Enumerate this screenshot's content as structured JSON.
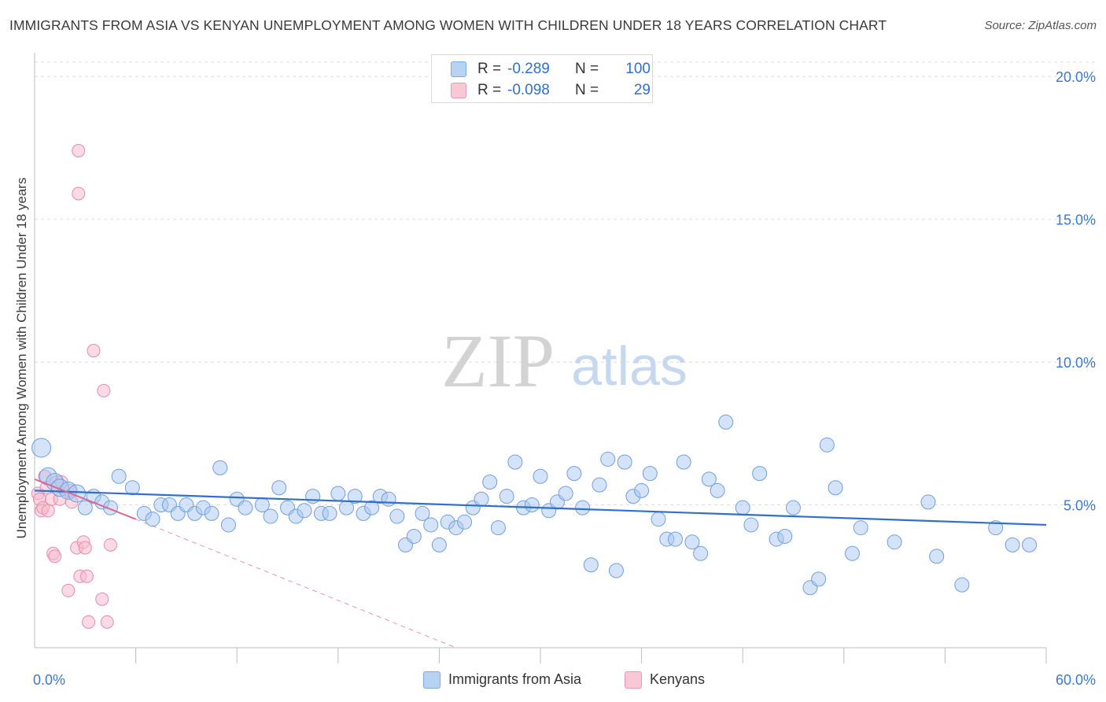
{
  "header": {
    "title": "IMMIGRANTS FROM ASIA VS KENYAN UNEMPLOYMENT AMONG WOMEN WITH CHILDREN UNDER 18 YEARS CORRELATION CHART",
    "source": "Source: ZipAtlas.com"
  },
  "watermark": {
    "zip": "ZIP",
    "atlas": "atlas"
  },
  "legend": {
    "rows": [
      {
        "r_label": "R =",
        "r_value": "-0.289",
        "n_label": "N =",
        "n_value": "100"
      },
      {
        "r_label": "R =",
        "r_value": "-0.098",
        "n_label": "N =",
        "n_value": "29"
      }
    ]
  },
  "bottom_legend": {
    "series1": "Immigrants from Asia",
    "series2": "Kenyans"
  },
  "colors": {
    "blue_fill": "#a9c8f0",
    "blue_stroke": "#6f9fdf",
    "blue_line": "#2f6fcf",
    "pink_fill": "#f6bccd",
    "pink_stroke": "#e88aa8",
    "pink_line": "#e0658e",
    "grid": "#dcdcdc",
    "axis_text": "#3b78d4"
  },
  "chart_data": {
    "type": "scatter",
    "title": "IMMIGRANTS FROM ASIA VS KENYAN UNEMPLOYMENT AMONG WOMEN WITH CHILDREN UNDER 18 YEARS CORRELATION CHART",
    "xlabel": "",
    "ylabel": "Unemployment Among Women with Children Under 18 years",
    "xlim": [
      0,
      60
    ],
    "ylim": [
      0,
      20.5
    ],
    "x_tick_labels": [
      "0.0%",
      "60.0%"
    ],
    "y_ticks": [
      5,
      10,
      15,
      20
    ],
    "y_tick_labels": [
      "5.0%",
      "10.0%",
      "15.0%",
      "20.0%"
    ],
    "grid": true,
    "series": [
      {
        "name": "Immigrants from Asia",
        "color": "#a9c8f0",
        "trend": {
          "x0": 0,
          "y0": 5.5,
          "x1": 60,
          "y1": 4.3
        },
        "points": [
          [
            0.4,
            7.0
          ],
          [
            0.8,
            6.0
          ],
          [
            1.2,
            5.8
          ],
          [
            1.5,
            5.6
          ],
          [
            2.0,
            5.5
          ],
          [
            2.5,
            5.4
          ],
          [
            3.0,
            4.9
          ],
          [
            3.5,
            5.3
          ],
          [
            4.0,
            5.1
          ],
          [
            4.5,
            4.9
          ],
          [
            5.0,
            6.0
          ],
          [
            5.8,
            5.6
          ],
          [
            6.5,
            4.7
          ],
          [
            7.0,
            4.5
          ],
          [
            7.5,
            5.0
          ],
          [
            8.0,
            5.0
          ],
          [
            8.5,
            4.7
          ],
          [
            9.0,
            5.0
          ],
          [
            9.5,
            4.7
          ],
          [
            10.0,
            4.9
          ],
          [
            10.5,
            4.7
          ],
          [
            11.0,
            6.3
          ],
          [
            11.5,
            4.3
          ],
          [
            12.0,
            5.2
          ],
          [
            12.5,
            4.9
          ],
          [
            13.5,
            5.0
          ],
          [
            14.0,
            4.6
          ],
          [
            14.5,
            5.6
          ],
          [
            15.0,
            4.9
          ],
          [
            15.5,
            4.6
          ],
          [
            16.0,
            4.8
          ],
          [
            16.5,
            5.3
          ],
          [
            17.0,
            4.7
          ],
          [
            17.5,
            4.7
          ],
          [
            18.0,
            5.4
          ],
          [
            18.5,
            4.9
          ],
          [
            19.0,
            5.3
          ],
          [
            19.5,
            4.7
          ],
          [
            20.0,
            4.9
          ],
          [
            20.5,
            5.3
          ],
          [
            21.0,
            5.2
          ],
          [
            21.5,
            4.6
          ],
          [
            22.0,
            3.6
          ],
          [
            22.5,
            3.9
          ],
          [
            23.0,
            4.7
          ],
          [
            23.5,
            4.3
          ],
          [
            24.0,
            3.6
          ],
          [
            24.5,
            4.4
          ],
          [
            25.0,
            4.2
          ],
          [
            25.5,
            4.4
          ],
          [
            26.0,
            4.9
          ],
          [
            26.5,
            5.2
          ],
          [
            27.0,
            5.8
          ],
          [
            27.5,
            4.2
          ],
          [
            28.0,
            5.3
          ],
          [
            28.5,
            6.5
          ],
          [
            29.0,
            4.9
          ],
          [
            29.5,
            5.0
          ],
          [
            30.0,
            6.0
          ],
          [
            30.5,
            4.8
          ],
          [
            31.0,
            5.1
          ],
          [
            31.5,
            5.4
          ],
          [
            32.0,
            6.1
          ],
          [
            32.5,
            4.9
          ],
          [
            33.0,
            2.9
          ],
          [
            33.5,
            5.7
          ],
          [
            34.0,
            6.6
          ],
          [
            34.5,
            2.7
          ],
          [
            35.0,
            6.5
          ],
          [
            35.5,
            5.3
          ],
          [
            36.0,
            5.5
          ],
          [
            36.5,
            6.1
          ],
          [
            37.0,
            4.5
          ],
          [
            37.5,
            3.8
          ],
          [
            38.0,
            3.8
          ],
          [
            38.5,
            6.5
          ],
          [
            39.0,
            3.7
          ],
          [
            39.5,
            3.3
          ],
          [
            40.0,
            5.9
          ],
          [
            40.5,
            5.5
          ],
          [
            41.0,
            7.9
          ],
          [
            42.0,
            4.9
          ],
          [
            42.5,
            4.3
          ],
          [
            43.0,
            6.1
          ],
          [
            44.0,
            3.8
          ],
          [
            44.5,
            3.9
          ],
          [
            45.0,
            4.9
          ],
          [
            46.0,
            2.1
          ],
          [
            46.5,
            2.4
          ],
          [
            47.0,
            7.1
          ],
          [
            47.5,
            5.6
          ],
          [
            48.5,
            3.3
          ],
          [
            49.0,
            4.2
          ],
          [
            51.0,
            3.7
          ],
          [
            53.0,
            5.1
          ],
          [
            53.5,
            3.2
          ],
          [
            55.0,
            2.2
          ],
          [
            57.0,
            4.2
          ],
          [
            58.0,
            3.6
          ],
          [
            59.0,
            3.6
          ]
        ]
      },
      {
        "name": "Kenyans",
        "color": "#f6bccd",
        "trend_solid": {
          "x0": 0,
          "y0": 5.9,
          "x1": 6,
          "y1": 4.5
        },
        "trend_dashed": {
          "x0": 6,
          "y0": 4.5,
          "x1": 25,
          "y1": 0
        },
        "points": [
          [
            0.2,
            5.4
          ],
          [
            0.3,
            5.2
          ],
          [
            0.4,
            4.8
          ],
          [
            0.5,
            4.9
          ],
          [
            0.6,
            6.0
          ],
          [
            0.7,
            5.6
          ],
          [
            0.8,
            4.8
          ],
          [
            1.0,
            5.2
          ],
          [
            1.1,
            3.3
          ],
          [
            1.2,
            3.2
          ],
          [
            1.3,
            5.8
          ],
          [
            1.5,
            5.2
          ],
          [
            1.6,
            5.8
          ],
          [
            2.0,
            2.0
          ],
          [
            2.1,
            5.5
          ],
          [
            2.2,
            5.1
          ],
          [
            2.5,
            3.5
          ],
          [
            2.6,
            17.4
          ],
          [
            2.6,
            15.9
          ],
          [
            2.7,
            2.5
          ],
          [
            2.9,
            3.7
          ],
          [
            3.0,
            3.5
          ],
          [
            3.1,
            2.5
          ],
          [
            3.2,
            0.9
          ],
          [
            3.5,
            10.4
          ],
          [
            4.0,
            1.7
          ],
          [
            4.1,
            9.0
          ],
          [
            4.3,
            0.9
          ],
          [
            4.5,
            3.6
          ]
        ]
      }
    ]
  }
}
